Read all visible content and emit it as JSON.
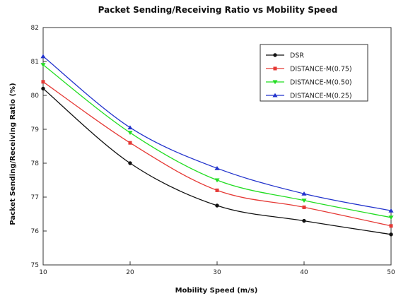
{
  "chart_data": {
    "type": "line",
    "title": "Packet Sending/Receiving Ratio vs Mobility Speed",
    "xlabel": "Mobility Speed (m/s)",
    "ylabel": "Packet Sending/Receiving Ratio (%)",
    "x": [
      10,
      20,
      30,
      40,
      50
    ],
    "xticks": [
      "10",
      "20",
      "30",
      "40",
      "50"
    ],
    "yticks": [
      "75",
      "76",
      "77",
      "78",
      "79",
      "80",
      "81",
      "82"
    ],
    "xlim": [
      10,
      50
    ],
    "ylim": [
      75,
      82
    ],
    "grid": false,
    "legend_position": "top-right",
    "series": [
      {
        "name": "DSR",
        "values": [
          80.2,
          78.0,
          76.75,
          76.3,
          75.9
        ],
        "color": "#111111",
        "marker": "circle"
      },
      {
        "name": "DISTANCE-M(0.75)",
        "values": [
          80.4,
          78.6,
          77.2,
          76.7,
          76.15
        ],
        "color": "#e53935",
        "marker": "square"
      },
      {
        "name": "DISTANCE-M(0.50)",
        "values": [
          80.9,
          78.9,
          77.5,
          76.9,
          76.4
        ],
        "color": "#22dd22",
        "marker": "triangle-down"
      },
      {
        "name": "DISTANCE-M(0.25)",
        "values": [
          81.15,
          79.05,
          77.85,
          77.1,
          76.6
        ],
        "color": "#2233cc",
        "marker": "triangle-up"
      }
    ]
  }
}
